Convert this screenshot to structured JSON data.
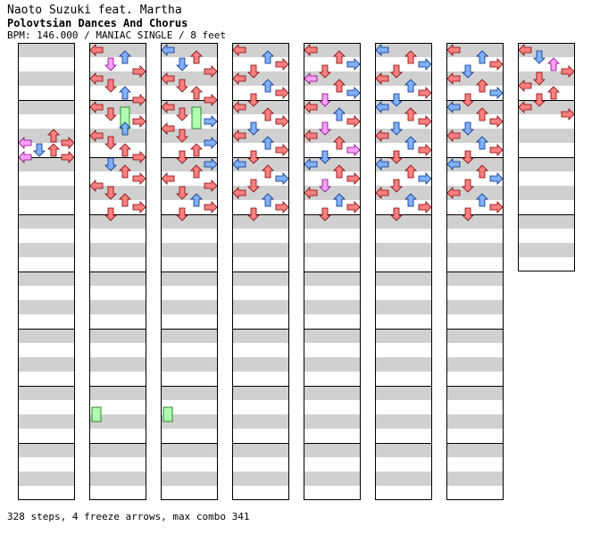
{
  "song": {
    "artist_line": "Naoto Suzuki feat. Martha",
    "title": "Polovtsian Dances And Chorus",
    "info": "BPM: 146.000 / MANIAC SINGLE / 8 feet"
  },
  "footer": {
    "summary": "328 steps, 4 freeze arrows, max combo 341"
  },
  "chart_data": {
    "type": "step-chart",
    "columns": 8,
    "measures_per_column": 8,
    "total_measures": 60,
    "lanes": [
      "left",
      "down",
      "up",
      "right"
    ],
    "colors": {
      "quarter": "#ff8080",
      "eighth": "#80b0ff",
      "sixteenth": "#ffa0ff",
      "freeze": "#b0ffb0",
      "stripe": "#d0d0d0"
    },
    "freeze_arrows": [
      {
        "column": 1,
        "lane": "up",
        "start_beat_in_column": 4.0,
        "end_beat_in_column": 5.5
      },
      {
        "column": 2,
        "lane": "up",
        "start_beat_in_column": 4.0,
        "end_beat_in_column": 5.5
      },
      {
        "column": 1,
        "lane": "left",
        "start_beat_in_column": 25.0,
        "end_beat_in_column": 26.0
      },
      {
        "column": 2,
        "lane": "left",
        "start_beat_in_column": 25.0,
        "end_beat_in_column": 26.0
      }
    ],
    "steps": [
      [
        [
          6.5,
          "left",
          "sixteenth"
        ],
        [
          6.0,
          "up",
          "quarter"
        ],
        [
          6.5,
          "right",
          "quarter"
        ],
        [
          7.0,
          "down",
          "eighth"
        ],
        [
          7.5,
          "left",
          "sixteenth"
        ],
        [
          7.0,
          "up",
          "quarter"
        ],
        [
          7.5,
          "right",
          "quarter"
        ]
      ],
      [
        [
          0.0,
          "left",
          "quarter"
        ],
        [
          0.5,
          "up",
          "eighth"
        ],
        [
          1.0,
          "down",
          "sixteenth"
        ],
        [
          1.5,
          "right",
          "quarter"
        ],
        [
          2.0,
          "left",
          "quarter"
        ],
        [
          2.5,
          "down",
          "quarter"
        ],
        [
          3.0,
          "up",
          "eighth"
        ],
        [
          3.5,
          "right",
          "quarter"
        ],
        [
          4.0,
          "left",
          "quarter"
        ],
        [
          4.5,
          "down",
          "quarter"
        ],
        [
          5.0,
          "right",
          "quarter"
        ],
        [
          5.5,
          "up",
          "eighth"
        ],
        [
          6.0,
          "left",
          "quarter"
        ],
        [
          6.5,
          "down",
          "quarter"
        ],
        [
          7.0,
          "up",
          "quarter"
        ],
        [
          7.5,
          "right",
          "quarter"
        ],
        [
          8.0,
          "down",
          "eighth"
        ],
        [
          8.5,
          "up",
          "quarter"
        ],
        [
          9.0,
          "right",
          "quarter"
        ],
        [
          9.5,
          "left",
          "quarter"
        ],
        [
          10.0,
          "down",
          "quarter"
        ],
        [
          10.5,
          "up",
          "quarter"
        ],
        [
          11.0,
          "right",
          "quarter"
        ],
        [
          11.5,
          "down",
          "quarter"
        ]
      ],
      [
        [
          0.0,
          "left",
          "eighth"
        ],
        [
          0.5,
          "up",
          "quarter"
        ],
        [
          1.0,
          "down",
          "eighth"
        ],
        [
          1.5,
          "right",
          "quarter"
        ],
        [
          2.0,
          "left",
          "quarter"
        ],
        [
          2.5,
          "down",
          "quarter"
        ],
        [
          3.0,
          "up",
          "quarter"
        ],
        [
          3.5,
          "right",
          "quarter"
        ],
        [
          4.0,
          "left",
          "quarter"
        ],
        [
          4.5,
          "down",
          "quarter"
        ],
        [
          5.0,
          "right",
          "eighth"
        ],
        [
          5.5,
          "left",
          "quarter"
        ],
        [
          6.0,
          "down",
          "quarter"
        ],
        [
          6.5,
          "right",
          "eighth"
        ],
        [
          7.0,
          "up",
          "quarter"
        ],
        [
          7.5,
          "down",
          "quarter"
        ],
        [
          8.0,
          "right",
          "eighth"
        ],
        [
          8.5,
          "up",
          "quarter"
        ],
        [
          9.0,
          "left",
          "quarter"
        ],
        [
          9.5,
          "right",
          "quarter"
        ],
        [
          10.0,
          "down",
          "quarter"
        ],
        [
          10.5,
          "up",
          "eighth"
        ],
        [
          11.0,
          "right",
          "quarter"
        ],
        [
          11.5,
          "down",
          "quarter"
        ]
      ],
      [
        [
          0.0,
          "left",
          "quarter"
        ],
        [
          0.5,
          "up",
          "eighth"
        ],
        [
          1.0,
          "right",
          "quarter"
        ],
        [
          1.5,
          "down",
          "quarter"
        ],
        [
          2.0,
          "left",
          "quarter"
        ],
        [
          2.5,
          "up",
          "eighth"
        ],
        [
          3.0,
          "right",
          "quarter"
        ],
        [
          3.5,
          "down",
          "quarter"
        ],
        [
          4.0,
          "left",
          "quarter"
        ],
        [
          4.5,
          "up",
          "quarter"
        ],
        [
          5.0,
          "right",
          "quarter"
        ],
        [
          5.5,
          "down",
          "eighth"
        ],
        [
          6.0,
          "left",
          "quarter"
        ],
        [
          6.5,
          "up",
          "eighth"
        ],
        [
          7.0,
          "right",
          "quarter"
        ],
        [
          7.5,
          "down",
          "quarter"
        ],
        [
          8.0,
          "left",
          "eighth"
        ],
        [
          8.5,
          "up",
          "quarter"
        ],
        [
          9.0,
          "right",
          "eighth"
        ],
        [
          9.5,
          "down",
          "quarter"
        ],
        [
          10.0,
          "left",
          "quarter"
        ],
        [
          10.5,
          "up",
          "eighth"
        ],
        [
          11.0,
          "right",
          "quarter"
        ],
        [
          11.5,
          "down",
          "quarter"
        ]
      ],
      [
        [
          0.0,
          "left",
          "quarter"
        ],
        [
          0.5,
          "up",
          "quarter"
        ],
        [
          1.0,
          "right",
          "eighth"
        ],
        [
          1.5,
          "down",
          "quarter"
        ],
        [
          2.0,
          "left",
          "sixteenth"
        ],
        [
          2.5,
          "up",
          "quarter"
        ],
        [
          3.0,
          "right",
          "eighth"
        ],
        [
          3.5,
          "down",
          "sixteenth"
        ],
        [
          4.0,
          "left",
          "quarter"
        ],
        [
          4.5,
          "up",
          "eighth"
        ],
        [
          5.0,
          "right",
          "quarter"
        ],
        [
          5.5,
          "down",
          "sixteenth"
        ],
        [
          6.0,
          "left",
          "quarter"
        ],
        [
          6.5,
          "up",
          "quarter"
        ],
        [
          7.0,
          "right",
          "sixteenth"
        ],
        [
          7.5,
          "down",
          "eighth"
        ],
        [
          8.0,
          "left",
          "eighth"
        ],
        [
          8.5,
          "up",
          "quarter"
        ],
        [
          9.0,
          "right",
          "quarter"
        ],
        [
          9.5,
          "down",
          "sixteenth"
        ],
        [
          10.0,
          "left",
          "quarter"
        ],
        [
          10.5,
          "up",
          "eighth"
        ],
        [
          11.0,
          "right",
          "quarter"
        ],
        [
          11.5,
          "down",
          "quarter"
        ]
      ],
      [
        [
          0.0,
          "left",
          "eighth"
        ],
        [
          0.5,
          "up",
          "quarter"
        ],
        [
          1.0,
          "right",
          "eighth"
        ],
        [
          1.5,
          "down",
          "quarter"
        ],
        [
          2.0,
          "left",
          "quarter"
        ],
        [
          2.5,
          "up",
          "eighth"
        ],
        [
          3.0,
          "right",
          "quarter"
        ],
        [
          3.5,
          "down",
          "eighth"
        ],
        [
          4.0,
          "left",
          "eighth"
        ],
        [
          4.5,
          "up",
          "quarter"
        ],
        [
          5.0,
          "right",
          "quarter"
        ],
        [
          5.5,
          "down",
          "eighth"
        ],
        [
          6.0,
          "left",
          "quarter"
        ],
        [
          6.5,
          "up",
          "eighth"
        ],
        [
          7.0,
          "right",
          "quarter"
        ],
        [
          7.5,
          "down",
          "quarter"
        ],
        [
          8.0,
          "left",
          "eighth"
        ],
        [
          8.5,
          "up",
          "quarter"
        ],
        [
          9.0,
          "right",
          "eighth"
        ],
        [
          9.5,
          "down",
          "quarter"
        ],
        [
          10.0,
          "left",
          "quarter"
        ],
        [
          10.5,
          "up",
          "eighth"
        ],
        [
          11.0,
          "right",
          "quarter"
        ],
        [
          11.5,
          "down",
          "quarter"
        ]
      ],
      [
        [
          0.0,
          "left",
          "quarter"
        ],
        [
          0.5,
          "up",
          "eighth"
        ],
        [
          1.0,
          "right",
          "quarter"
        ],
        [
          1.5,
          "down",
          "eighth"
        ],
        [
          2.0,
          "left",
          "quarter"
        ],
        [
          2.5,
          "up",
          "quarter"
        ],
        [
          3.0,
          "right",
          "eighth"
        ],
        [
          3.5,
          "down",
          "quarter"
        ],
        [
          4.0,
          "left",
          "eighth"
        ],
        [
          4.5,
          "up",
          "quarter"
        ],
        [
          5.0,
          "right",
          "quarter"
        ],
        [
          5.5,
          "down",
          "eighth"
        ],
        [
          6.0,
          "left",
          "quarter"
        ],
        [
          6.5,
          "up",
          "eighth"
        ],
        [
          7.0,
          "right",
          "quarter"
        ],
        [
          7.5,
          "down",
          "quarter"
        ],
        [
          8.0,
          "left",
          "eighth"
        ],
        [
          8.5,
          "up",
          "quarter"
        ],
        [
          9.0,
          "right",
          "eighth"
        ],
        [
          9.5,
          "down",
          "quarter"
        ],
        [
          10.0,
          "left",
          "quarter"
        ],
        [
          10.5,
          "up",
          "eighth"
        ],
        [
          11.0,
          "right",
          "quarter"
        ],
        [
          11.5,
          "down",
          "quarter"
        ]
      ],
      [
        [
          0.0,
          "left",
          "quarter"
        ],
        [
          0.5,
          "down",
          "eighth"
        ],
        [
          1.0,
          "up",
          "sixteenth"
        ],
        [
          1.5,
          "right",
          "quarter"
        ],
        [
          2.0,
          "down",
          "quarter"
        ],
        [
          2.5,
          "left",
          "quarter"
        ],
        [
          3.0,
          "up",
          "quarter"
        ],
        [
          3.5,
          "down",
          "quarter"
        ],
        [
          4.0,
          "left",
          "quarter"
        ],
        [
          4.5,
          "right",
          "quarter"
        ]
      ]
    ]
  }
}
